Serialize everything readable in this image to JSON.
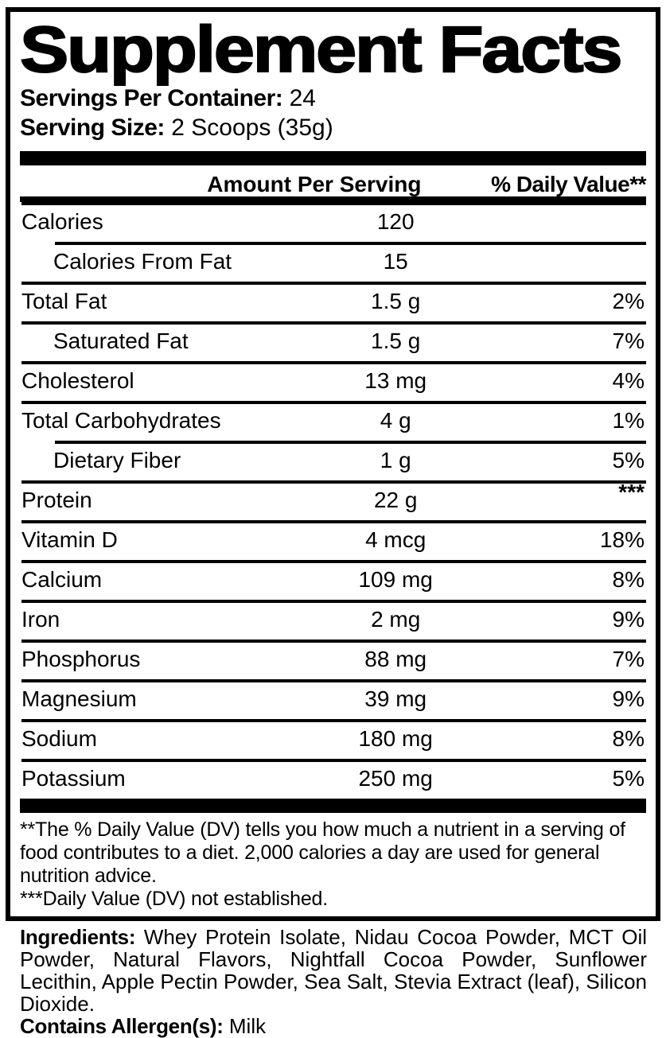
{
  "colors": {
    "text": "#000000",
    "background": "#ffffff"
  },
  "header": {
    "title": "Supplement Facts",
    "servings_per_container_label": "Servings Per Container:",
    "servings_per_container_value": "24",
    "serving_size_label": "Serving Size:",
    "serving_size_value": "2 Scoops (35g)"
  },
  "table": {
    "columns": {
      "amount": "Amount Per Serving",
      "daily_value": "% Daily Value**"
    },
    "rows": [
      {
        "label": "Calories",
        "amount": "120",
        "dv": ""
      },
      {
        "label": "Calories From Fat",
        "amount": "15",
        "dv": "",
        "sub": true,
        "divider_above": "indented"
      },
      {
        "label": "Total Fat",
        "amount": "1.5 g",
        "dv": "2%"
      },
      {
        "label": "Saturated Fat",
        "amount": "1.5 g",
        "dv": "7%",
        "sub": true
      },
      {
        "label": "Cholesterol",
        "amount": "13 mg",
        "dv": "4%"
      },
      {
        "label": "Total Carbohydrates",
        "amount": "4 g",
        "dv": "1%"
      },
      {
        "label": "Dietary Fiber",
        "amount": "1 g",
        "dv": "5%",
        "sub": true,
        "divider_above": "indented"
      },
      {
        "label": "Protein",
        "amount": "22 g",
        "dv": "***",
        "dv_raised": true
      },
      {
        "label": "Vitamin D",
        "amount": "4 mcg",
        "dv": "18%"
      },
      {
        "label": "Calcium",
        "amount": "109 mg",
        "dv": "8%"
      },
      {
        "label": "Iron",
        "amount": "2 mg",
        "dv": "9%"
      },
      {
        "label": "Phosphorus",
        "amount": "88 mg",
        "dv": "7%"
      },
      {
        "label": "Magnesium",
        "amount": "39 mg",
        "dv": "9%"
      },
      {
        "label": "Sodium",
        "amount": "180 mg",
        "dv": "8%"
      },
      {
        "label": "Potassium",
        "amount": "250 mg",
        "dv": "5%"
      }
    ]
  },
  "footnotes": [
    "**The % Daily Value (DV) tells you how much a nutrient in a serving of food contributes to a diet. 2,000 calories a day are used for general nutrition advice.",
    "***Daily Value (DV) not established."
  ],
  "ingredients": {
    "label": "Ingredients:",
    "text": "Whey Protein Isolate, Nidau Cocoa Powder, MCT Oil Powder, Natural Flavors, Nightfall Cocoa Powder, Sunflower Lecithin, Apple Pectin Powder, Sea Salt, Stevia Extract (leaf), Silicon Dioxide.",
    "allergen_label": "Contains Allergen(s):",
    "allergen_value": "Milk"
  }
}
